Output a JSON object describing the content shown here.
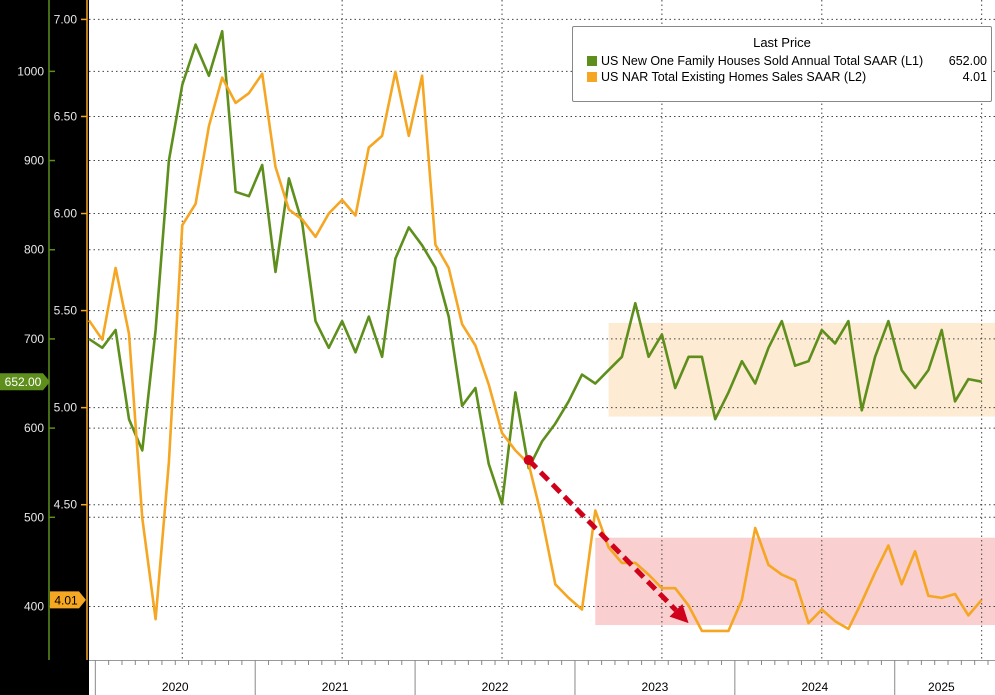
{
  "chart_data": {
    "type": "line",
    "x_range": [
      "2019-12",
      "2025-08"
    ],
    "year_labels": [
      "2020",
      "2021",
      "2022",
      "2023",
      "2024",
      "2025"
    ],
    "left_axis": {
      "ylim": [
        340,
        1080
      ],
      "ticks": [
        "400",
        "500",
        "600",
        "700",
        "800",
        "900",
        "1000"
      ],
      "color": "#5e8f1c"
    },
    "right_axis": {
      "ylim": [
        3.7,
        7.1
      ],
      "ticks": [
        "4.50",
        "5.00",
        "5.50",
        "6.00",
        "6.50",
        "7.00"
      ],
      "color": "#f5a623"
    },
    "grid": true,
    "legend": {
      "title": "Last Price",
      "position": "top-right",
      "entries": [
        {
          "label": "US New One Family Houses Sold Annual Total SAAR  (L1)",
          "value": "652.00",
          "color": "#5e8f1c"
        },
        {
          "label": "US NAR Total Existing Homes Sales SAAR  (L2)",
          "value": "4.01",
          "color": "#f5a623"
        }
      ]
    },
    "series": [
      {
        "name": "US New One Family Houses Sold Annual Total SAAR  (L1)",
        "axis": "left",
        "color": "#5e8f1c",
        "last_value_label": "652.00",
        "x": [
          "2019-12",
          "2020-01",
          "2020-02",
          "2020-03",
          "2020-04",
          "2020-05",
          "2020-06",
          "2020-07",
          "2020-08",
          "2020-09",
          "2020-10",
          "2020-11",
          "2020-12",
          "2021-01",
          "2021-02",
          "2021-03",
          "2021-04",
          "2021-05",
          "2021-06",
          "2021-07",
          "2021-08",
          "2021-09",
          "2021-10",
          "2021-11",
          "2021-12",
          "2022-01",
          "2022-02",
          "2022-03",
          "2022-04",
          "2022-05",
          "2022-06",
          "2022-07",
          "2022-08",
          "2022-09",
          "2022-10",
          "2022-11",
          "2022-12",
          "2023-01",
          "2023-02",
          "2023-03",
          "2023-04",
          "2023-05",
          "2023-06",
          "2023-07",
          "2023-08",
          "2023-09",
          "2023-10",
          "2023-11",
          "2023-12",
          "2024-01",
          "2024-02",
          "2024-03",
          "2024-04",
          "2024-05",
          "2024-06",
          "2024-07",
          "2024-08",
          "2024-09",
          "2024-10",
          "2024-11",
          "2024-12",
          "2025-01",
          "2025-02",
          "2025-03",
          "2025-04",
          "2025-05",
          "2025-06",
          "2025-07"
        ],
        "values": [
          700,
          690,
          710,
          610,
          575,
          710,
          900,
          985,
          1030,
          995,
          1045,
          865,
          860,
          895,
          775,
          880,
          830,
          720,
          690,
          720,
          685,
          725,
          680,
          790,
          825,
          805,
          780,
          725,
          625,
          645,
          560,
          515,
          640,
          555,
          585,
          605,
          630,
          660,
          650,
          665,
          680,
          740,
          680,
          705,
          645,
          680,
          680,
          610,
          640,
          675,
          650,
          690,
          720,
          670,
          675,
          710,
          695,
          720,
          620,
          680,
          720,
          665,
          645,
          665,
          710,
          630,
          655,
          652
        ]
      },
      {
        "name": "US NAR Total Existing Homes Sales SAAR  (L2)",
        "axis": "right",
        "color": "#f5a623",
        "last_value_label": "4.01",
        "x": [
          "2019-12",
          "2020-01",
          "2020-02",
          "2020-03",
          "2020-04",
          "2020-05",
          "2020-06",
          "2020-07",
          "2020-08",
          "2020-09",
          "2020-10",
          "2020-11",
          "2020-12",
          "2021-01",
          "2021-02",
          "2021-03",
          "2021-04",
          "2021-05",
          "2021-06",
          "2021-07",
          "2021-08",
          "2021-09",
          "2021-10",
          "2021-11",
          "2021-12",
          "2022-01",
          "2022-02",
          "2022-03",
          "2022-04",
          "2022-05",
          "2022-06",
          "2022-07",
          "2022-08",
          "2022-09",
          "2022-10",
          "2022-11",
          "2022-12",
          "2023-01",
          "2023-02",
          "2023-03",
          "2023-04",
          "2023-05",
          "2023-06",
          "2023-07",
          "2023-08",
          "2023-09",
          "2023-10",
          "2023-11",
          "2023-12",
          "2024-01",
          "2024-02",
          "2024-03",
          "2024-04",
          "2024-05",
          "2024-06",
          "2024-07",
          "2024-08",
          "2024-09",
          "2024-10",
          "2024-11",
          "2024-12",
          "2025-01",
          "2025-02",
          "2025-03",
          "2025-04",
          "2025-05",
          "2025-06",
          "2025-07"
        ],
        "values": [
          5.45,
          5.35,
          5.72,
          5.38,
          4.43,
          3.91,
          4.72,
          5.94,
          6.05,
          6.45,
          6.7,
          6.57,
          6.62,
          6.72,
          6.24,
          6.02,
          5.97,
          5.88,
          6.0,
          6.07,
          5.99,
          6.34,
          6.4,
          6.73,
          6.4,
          6.71,
          5.84,
          5.72,
          5.43,
          5.32,
          5.12,
          4.87,
          4.78,
          4.71,
          4.43,
          4.09,
          4.02,
          3.96,
          4.47,
          4.28,
          4.2,
          4.2,
          4.14,
          4.07,
          4.07,
          3.98,
          3.85,
          3.85,
          3.85,
          4.01,
          4.38,
          4.19,
          4.14,
          4.11,
          3.89,
          3.96,
          3.9,
          3.86,
          4.0,
          4.15,
          4.29,
          4.09,
          4.26,
          4.03,
          4.02,
          4.04,
          3.93,
          4.01
        ]
      }
    ],
    "annotations": [
      {
        "type": "band",
        "axis": "left",
        "x0": "2023-03",
        "x1": "2025-08",
        "y0": 613,
        "y1": 718,
        "color": "#fdebd3"
      },
      {
        "type": "band",
        "axis": "right",
        "x0": "2023-02",
        "x1": "2025-08",
        "y0": 3.88,
        "y1": 4.33,
        "color": "#f9cfcf"
      },
      {
        "type": "arrow",
        "axis": "right",
        "x0": "2022-09",
        "y0": 4.73,
        "x1": "2023-09",
        "y1": 3.89,
        "color": "#d0021b"
      }
    ]
  }
}
